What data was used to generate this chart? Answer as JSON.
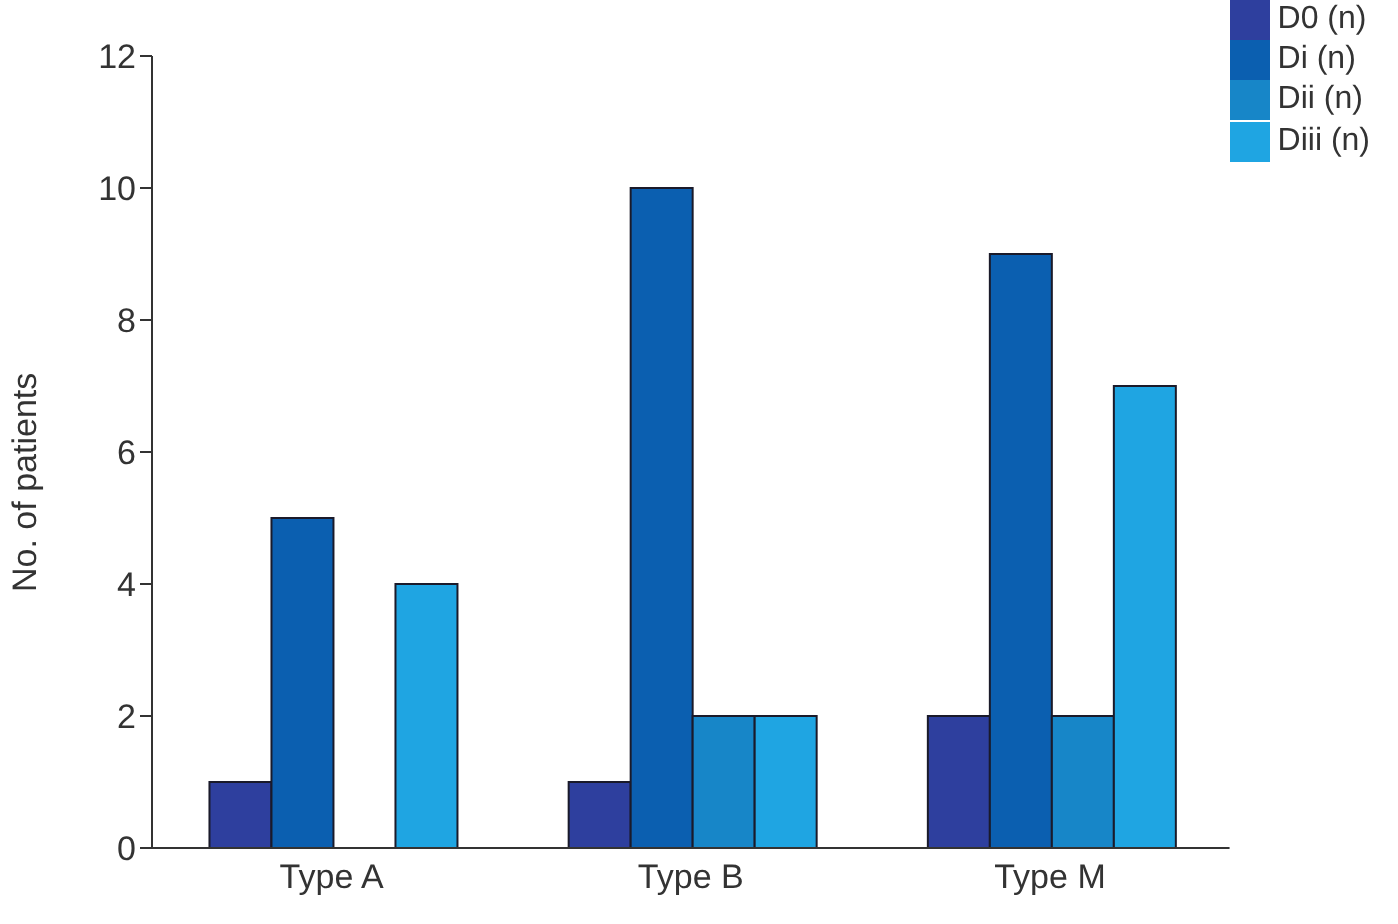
{
  "chart_data": {
    "type": "bar",
    "ylabel": "No. of patients",
    "categories": [
      "Type A",
      "Type B",
      "Type M"
    ],
    "series": [
      {
        "name": "D0 (n)",
        "color": "#2e3f9e",
        "values": [
          1,
          1,
          2
        ]
      },
      {
        "name": "Di (n)",
        "color": "#0b5fb0",
        "values": [
          5,
          10,
          9
        ]
      },
      {
        "name": "Dii (n)",
        "color": "#1786c8",
        "values": [
          0,
          2,
          2
        ]
      },
      {
        "name": "Diii (n)",
        "color": "#1fa5e2",
        "values": [
          4,
          2,
          7
        ]
      }
    ],
    "ylim": [
      0,
      12
    ],
    "yticks": [
      0,
      2,
      4,
      6,
      8,
      10,
      12
    ],
    "grid": false,
    "legend": "top right"
  }
}
